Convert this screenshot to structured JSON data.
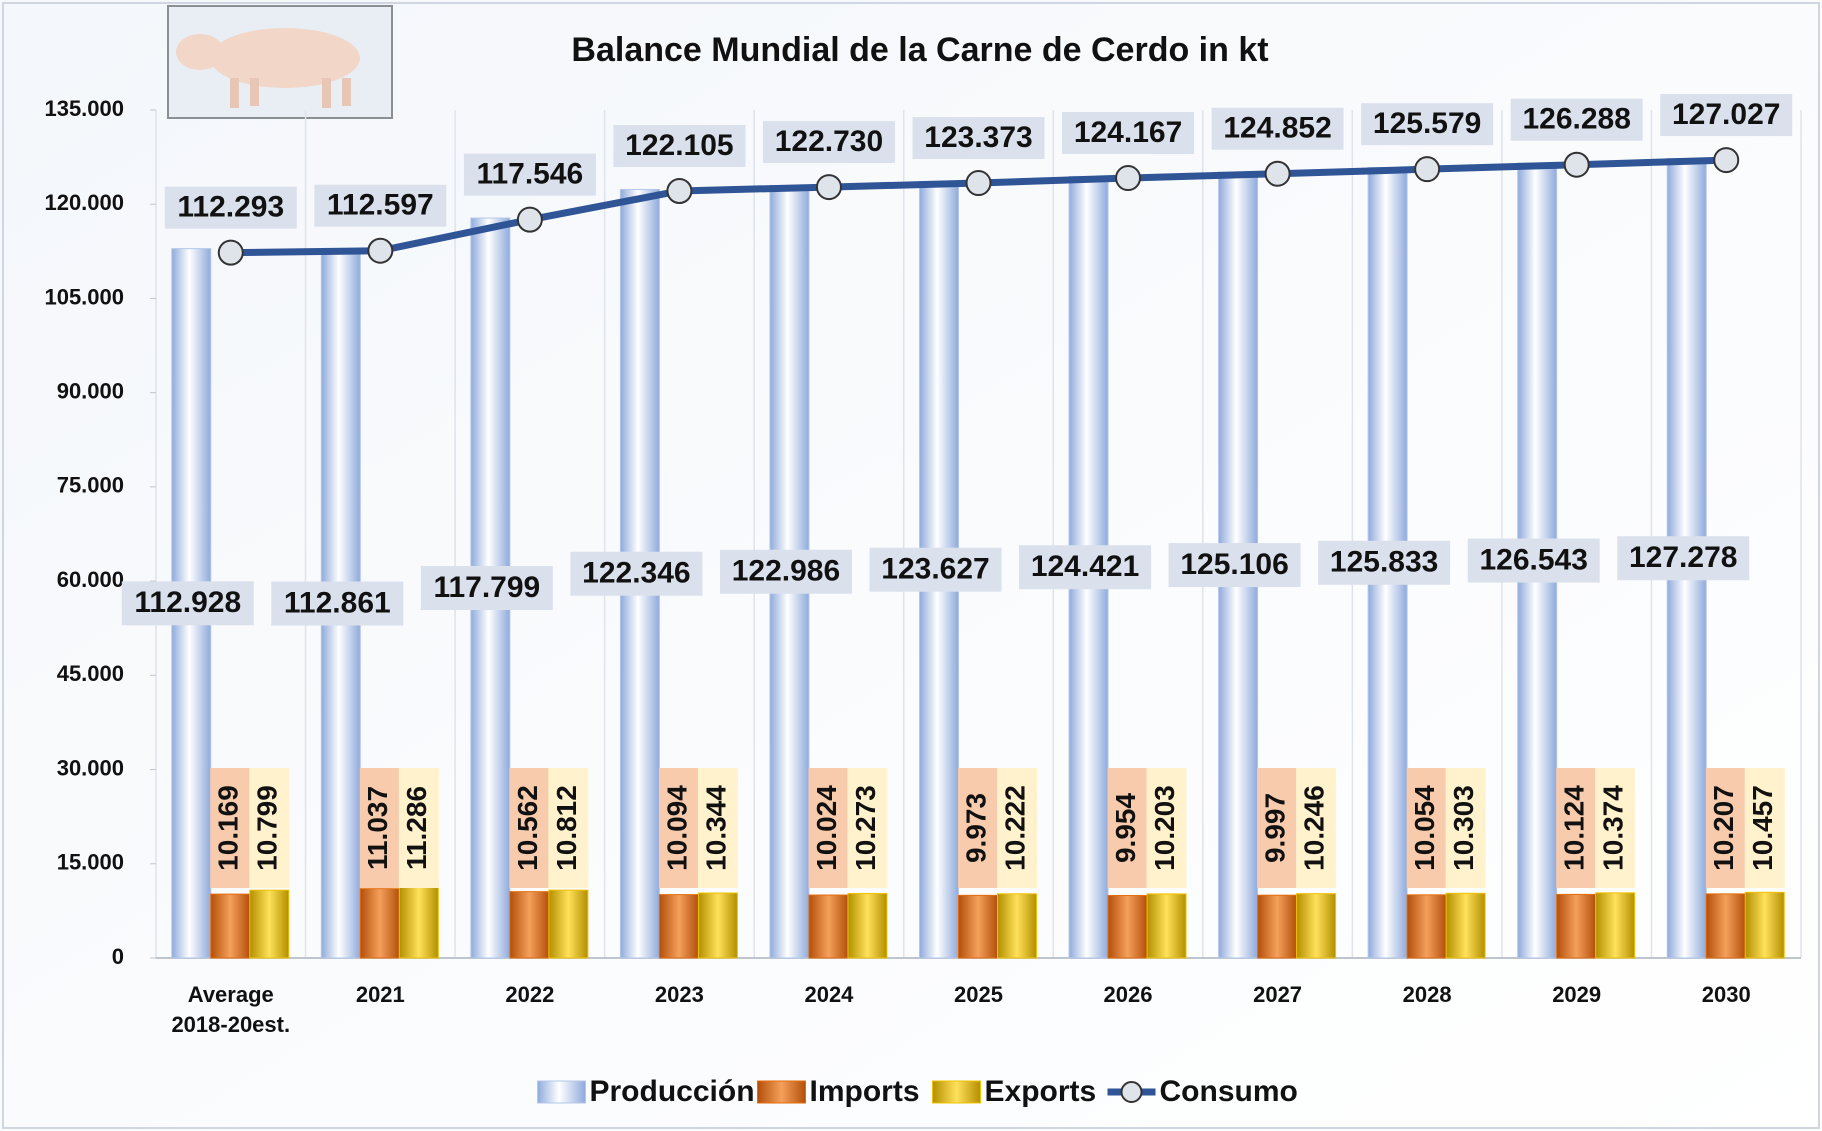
{
  "chart_data": {
    "type": "bar",
    "title": "Balance Mundial de la Carne de Cerdo in kt",
    "categories": [
      "Average\n2018-20est.",
      "2021",
      "2022",
      "2023",
      "2024",
      "2025",
      "2026",
      "2027",
      "2028",
      "2029",
      "2030"
    ],
    "series": [
      {
        "name": "Producción",
        "type": "bar",
        "color": "#b4c7e7",
        "values": [
          112928,
          112861,
          117799,
          122346,
          122986,
          123627,
          124421,
          125106,
          125833,
          126543,
          127278
        ],
        "value_labels": [
          "112.928",
          "112.861",
          "117.799",
          "122.346",
          "122.986",
          "123.627",
          "124.421",
          "125.106",
          "125.833",
          "126.543",
          "127.278"
        ]
      },
      {
        "name": "Imports",
        "type": "bar",
        "color": "#e46c0a",
        "values": [
          10169,
          11037,
          10562,
          10094,
          10024,
          9973,
          9954,
          9997,
          10054,
          10124,
          10207
        ],
        "value_labels": [
          "10.169",
          "11.037",
          "10.562",
          "10.094",
          "10.024",
          "9.973",
          "9.954",
          "9.997",
          "10.054",
          "10.124",
          "10.207"
        ]
      },
      {
        "name": "Exports",
        "type": "bar",
        "color": "#f2c200",
        "values": [
          10799,
          11286,
          10812,
          10344,
          10273,
          10222,
          10203,
          10246,
          10303,
          10374,
          10457
        ],
        "value_labels": [
          "10.799",
          "11.286",
          "10.812",
          "10.344",
          "10.273",
          "10.222",
          "10.203",
          "10.246",
          "10.303",
          "10.374",
          "10.457"
        ]
      },
      {
        "name": "Consumo",
        "type": "line",
        "color": "#2f5597",
        "values": [
          112293,
          112597,
          117546,
          122105,
          122730,
          123373,
          124167,
          124852,
          125579,
          126288,
          127027
        ],
        "value_labels": [
          "112.293",
          "112.597",
          "117.546",
          "122.105",
          "122.730",
          "123.373",
          "124.167",
          "124.852",
          "125.579",
          "126.288",
          "127.027"
        ]
      }
    ],
    "ylim": [
      0,
      135000
    ],
    "yticks": [
      0,
      {
        "value": 15000,
        "label": "15.000"
      },
      {
        "value": 30000,
        "label": "30.000"
      },
      {
        "value": 45000,
        "label": "45.000"
      },
      {
        "value": 60000,
        "label": "60.000"
      },
      {
        "value": 75000,
        "label": "75.000"
      },
      {
        "value": 90000,
        "label": "90.000"
      },
      {
        "value": 105000,
        "label": "105.000"
      },
      {
        "value": 120000,
        "label": "120.000"
      },
      {
        "value": 135000,
        "label": "135.000"
      }
    ],
    "grid": false,
    "legend": "bottom"
  }
}
